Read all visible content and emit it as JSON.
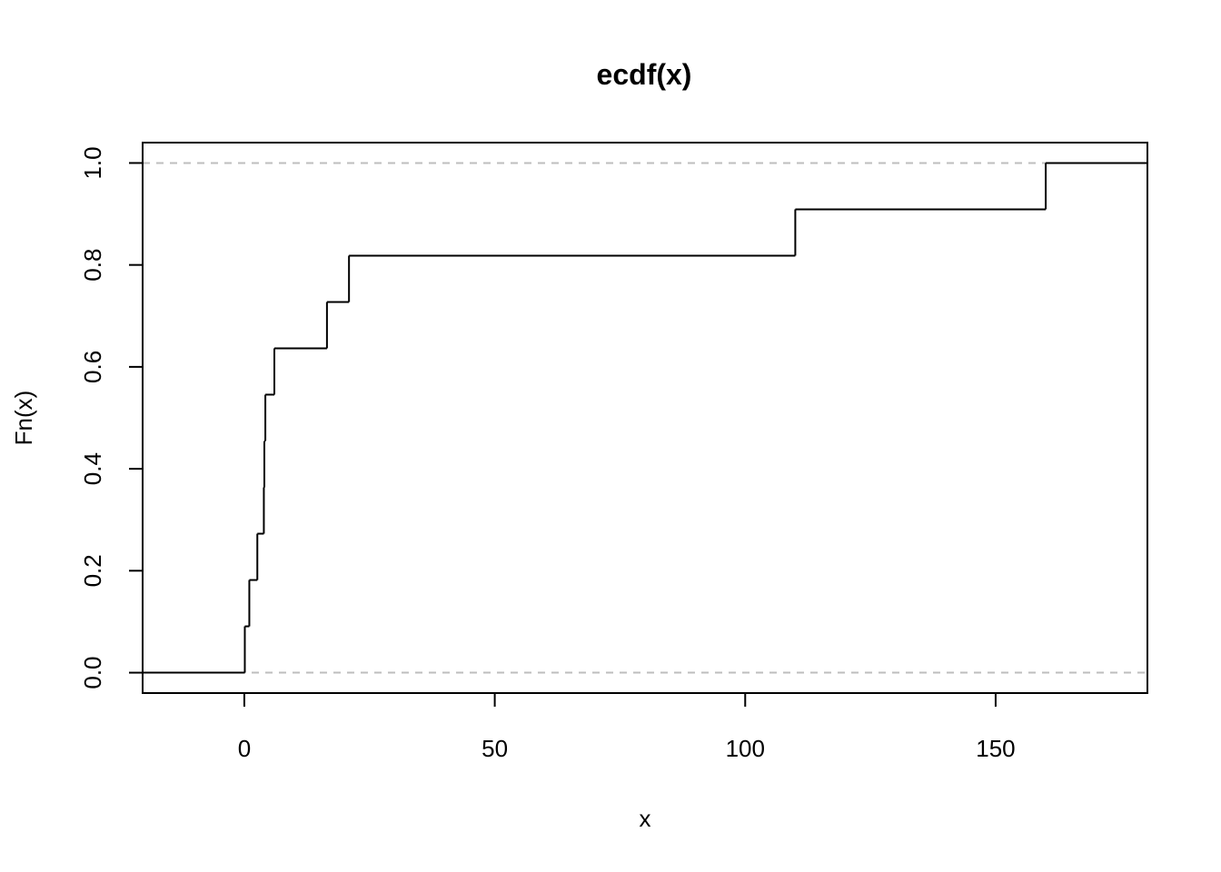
{
  "chart_data": {
    "type": "step",
    "title": "ecdf(x)",
    "xlabel": "x",
    "ylabel": "Fn(x)",
    "xlim": [
      -20.3,
      180.3
    ],
    "ylim": [
      -0.04,
      1.04
    ],
    "x_ticks": [
      0,
      50,
      100,
      150
    ],
    "x_tick_labels": [
      "0",
      "50",
      "100",
      "150"
    ],
    "y_ticks": [
      0,
      0.2,
      0.4,
      0.6,
      0.8,
      1
    ],
    "y_tick_labels": [
      "0.0",
      "0.2",
      "0.4",
      "0.6",
      "0.8",
      "1.0"
    ],
    "reference_lines": [
      0,
      1
    ],
    "grid": false,
    "legend": "none",
    "line_color": "#000000",
    "reference_line_color": "#bebebe",
    "steps": [
      {
        "x": 0.1,
        "y": 0.0909
      },
      {
        "x": 1.0,
        "y": 0.1818
      },
      {
        "x": 2.6,
        "y": 0.2727
      },
      {
        "x": 3.9,
        "y": 0.3636
      },
      {
        "x": 4.0,
        "y": 0.4545
      },
      {
        "x": 4.2,
        "y": 0.5455
      },
      {
        "x": 6.0,
        "y": 0.6364
      },
      {
        "x": 16.5,
        "y": 0.7273
      },
      {
        "x": 20.9,
        "y": 0.8182
      },
      {
        "x": 110.0,
        "y": 0.9091
      },
      {
        "x": 160.0,
        "y": 1.0
      }
    ]
  }
}
